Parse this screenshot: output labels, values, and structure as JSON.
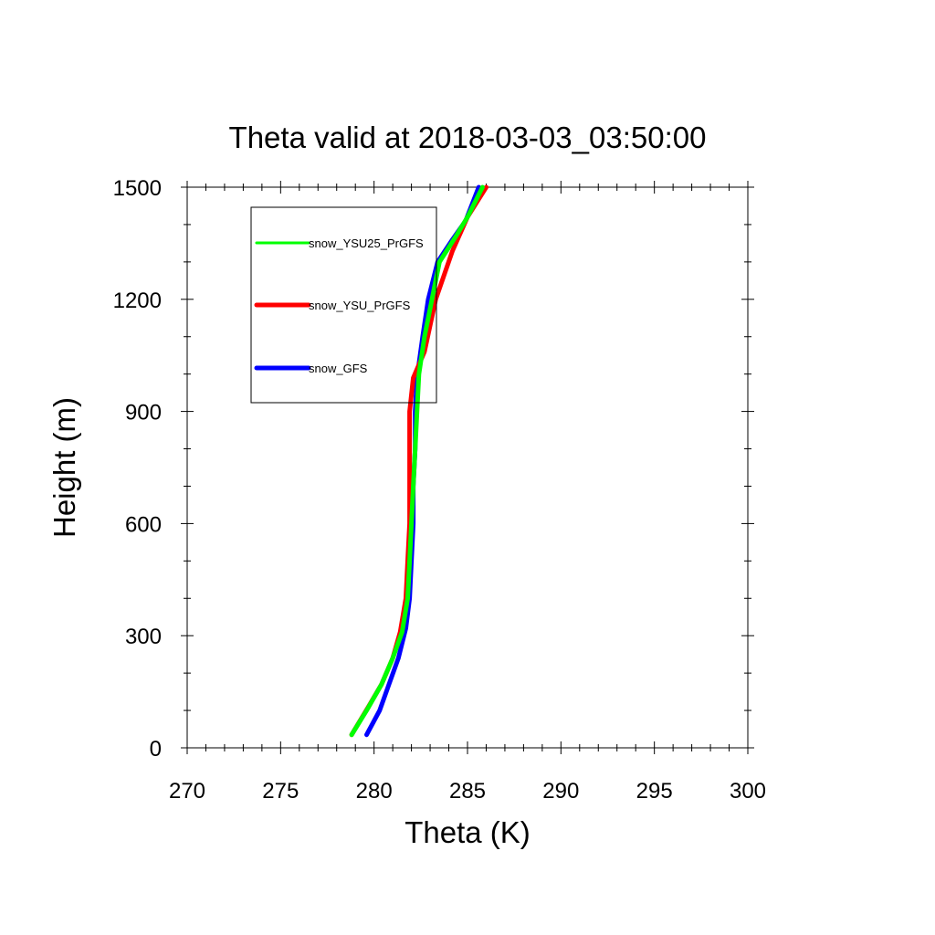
{
  "chart_data": {
    "type": "line",
    "title": "Theta valid at 2018-03-03_03:50:00",
    "xlabel": "Theta (K)",
    "ylabel": "Height (m)",
    "xlim": [
      270,
      300
    ],
    "ylim": [
      0,
      1500
    ],
    "xticks": [
      270,
      275,
      280,
      285,
      290,
      295,
      300
    ],
    "yticks": [
      0,
      300,
      600,
      900,
      1200,
      1500
    ],
    "x_minor_step": 1,
    "y_minor_step": 100,
    "grid": false,
    "legend": "top-left",
    "series": [
      {
        "name": "snow_YSU25_PrGFS",
        "color": "#00ff00",
        "points": [
          [
            278.8,
            35
          ],
          [
            279.6,
            100
          ],
          [
            280.4,
            170
          ],
          [
            281.0,
            240
          ],
          [
            281.5,
            310
          ],
          [
            281.8,
            400
          ],
          [
            281.9,
            500
          ],
          [
            282.0,
            600
          ],
          [
            282.1,
            700
          ],
          [
            282.2,
            800
          ],
          [
            282.3,
            900
          ],
          [
            282.4,
            1000
          ],
          [
            282.7,
            1100
          ],
          [
            283.1,
            1200
          ],
          [
            283.5,
            1300
          ],
          [
            284.4,
            1370
          ],
          [
            285.0,
            1420
          ],
          [
            285.8,
            1500
          ]
        ]
      },
      {
        "name": "snow_YSU_PrGFS",
        "color": "#ff0000",
        "points": [
          [
            278.8,
            35
          ],
          [
            279.7,
            110
          ],
          [
            280.4,
            170
          ],
          [
            281.0,
            240
          ],
          [
            281.4,
            310
          ],
          [
            281.7,
            400
          ],
          [
            281.8,
            500
          ],
          [
            281.9,
            600
          ],
          [
            281.9,
            700
          ],
          [
            281.9,
            800
          ],
          [
            281.9,
            900
          ],
          [
            282.1,
            990
          ],
          [
            282.7,
            1060
          ],
          [
            283.3,
            1200
          ],
          [
            284.2,
            1330
          ],
          [
            285.0,
            1420
          ],
          [
            286.0,
            1500
          ]
        ]
      },
      {
        "name": "snow_GFS",
        "color": "#0000ff",
        "points": [
          [
            279.6,
            35
          ],
          [
            280.3,
            100
          ],
          [
            280.8,
            170
          ],
          [
            281.3,
            240
          ],
          [
            281.7,
            320
          ],
          [
            281.9,
            400
          ],
          [
            282.0,
            500
          ],
          [
            282.1,
            600
          ],
          [
            282.1,
            700
          ],
          [
            282.2,
            800
          ],
          [
            282.2,
            900
          ],
          [
            282.3,
            990
          ],
          [
            282.6,
            1100
          ],
          [
            282.9,
            1200
          ],
          [
            283.4,
            1300
          ],
          [
            284.2,
            1360
          ],
          [
            284.9,
            1410
          ],
          [
            285.6,
            1500
          ]
        ]
      }
    ]
  }
}
